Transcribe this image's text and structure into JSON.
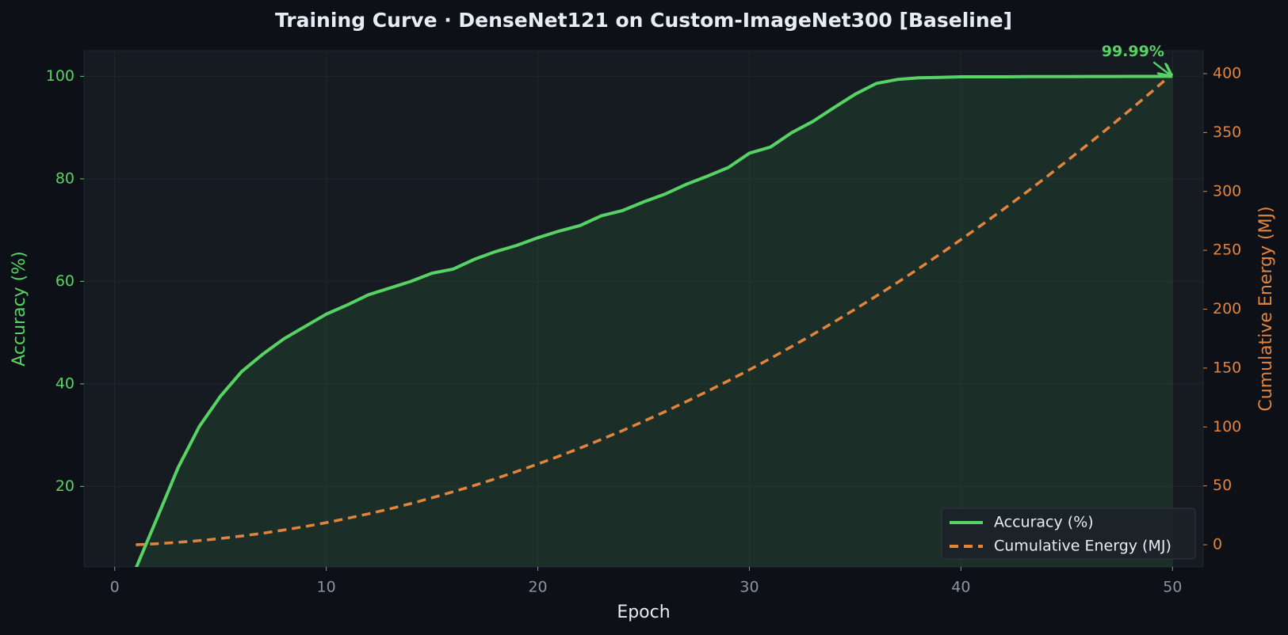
{
  "chart_data": {
    "type": "line",
    "title": "Training Curve  ·  DenseNet121 on Custom-ImageNet300  [Baseline]",
    "x_label": "Epoch",
    "y_label": "Accuracy (%)",
    "y2_label": "Cumulative Energy (MJ)",
    "x": [
      1,
      2,
      3,
      4,
      5,
      6,
      7,
      8,
      9,
      10,
      11,
      12,
      13,
      14,
      15,
      16,
      17,
      18,
      19,
      20,
      21,
      22,
      23,
      24,
      25,
      26,
      27,
      28,
      29,
      30,
      31,
      32,
      33,
      34,
      35,
      36,
      37,
      38,
      39,
      40,
      41,
      42,
      43,
      44,
      45,
      46,
      47,
      48,
      49,
      50
    ],
    "series": [
      {
        "name": "Accuracy (%)",
        "color": "#56d364",
        "axis": "y",
        "values": [
          4,
          13.8,
          23.7,
          31.7,
          37.6,
          42.4,
          45.8,
          48.8,
          51.2,
          53.6,
          55.4,
          57.4,
          58.7,
          60.0,
          61.6,
          62.4,
          64.3,
          65.8,
          67.0,
          68.5,
          69.8,
          70.9,
          72.8,
          73.8,
          75.5,
          77.0,
          78.9,
          80.5,
          82.2,
          85.0,
          86.2,
          89.0,
          91.2,
          93.9,
          96.5,
          98.6,
          99.4,
          99.7,
          99.8,
          99.9,
          99.9,
          99.9,
          99.95,
          99.95,
          99.95,
          99.97,
          99.97,
          99.98,
          99.98,
          99.99
        ]
      },
      {
        "name": "Cumulative Energy (MJ)",
        "color": "#e3843c",
        "axis": "y2",
        "dashed": true,
        "values": [
          0,
          0.9,
          2.1,
          3.5,
          5.3,
          7.4,
          9.8,
          12.5,
          15.5,
          18.8,
          22.4,
          26.3,
          30.5,
          35.0,
          39.9,
          45.0,
          50.4,
          56.1,
          62.2,
          68.5,
          75.2,
          82.1,
          89.4,
          96.9,
          104.8,
          112.9,
          121.4,
          130.2,
          139.2,
          148.6,
          158.3,
          168.3,
          178.5,
          189.1,
          200.0,
          211.2,
          222.7,
          234.5,
          246.6,
          259.1,
          271.8,
          284.8,
          298.1,
          311.7,
          325.7,
          339.9,
          354.4,
          369.3,
          384.4,
          400
        ]
      }
    ],
    "xlim": [
      -1.45,
      51.45
    ],
    "xticks": [
      0,
      10,
      20,
      30,
      40,
      50
    ],
    "ylim": [
      4.3,
      105
    ],
    "yticks": [
      20,
      40,
      60,
      80,
      100
    ],
    "y2lim": [
      -18.8,
      419.5
    ],
    "y2ticks": [
      0,
      50,
      100,
      150,
      200,
      250,
      300,
      350,
      400
    ],
    "grid": true,
    "legend": "lower right",
    "annotations": [
      {
        "text": "99.99%",
        "x": 50,
        "y": 99.99
      }
    ]
  }
}
